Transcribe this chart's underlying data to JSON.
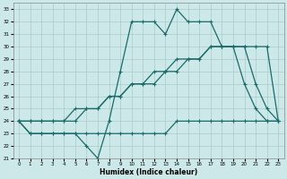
{
  "title": "",
  "xlabel": "Humidex (Indice chaleur)",
  "bg_color": "#cce8e8",
  "line_color": "#1a6b6b",
  "grid_color": "#aacaca",
  "xlim": [
    -0.5,
    23.5
  ],
  "ylim": [
    21,
    33.5
  ],
  "xticks": [
    0,
    1,
    2,
    3,
    4,
    5,
    6,
    7,
    8,
    9,
    10,
    11,
    12,
    13,
    14,
    15,
    16,
    17,
    18,
    19,
    20,
    21,
    22,
    23
  ],
  "yticks": [
    21,
    22,
    23,
    24,
    25,
    26,
    27,
    28,
    29,
    30,
    31,
    32,
    33
  ],
  "series1_x": [
    0,
    1,
    2,
    3,
    4,
    5,
    6,
    7,
    8,
    9,
    10,
    11,
    12,
    13,
    14,
    15,
    16,
    17,
    18,
    19,
    20,
    21,
    22,
    23
  ],
  "series1_y": [
    24,
    23,
    23,
    23,
    23,
    23,
    22,
    21,
    24,
    28,
    32,
    32,
    32,
    31,
    33,
    32,
    32,
    32,
    30,
    30,
    27,
    25,
    24,
    24
  ],
  "series2_x": [
    0,
    1,
    2,
    3,
    4,
    5,
    6,
    7,
    8,
    9,
    10,
    11,
    12,
    13,
    14,
    15,
    16,
    17,
    18,
    19,
    20,
    21,
    22,
    23
  ],
  "series2_y": [
    24,
    23,
    23,
    23,
    23,
    23,
    23,
    23,
    23,
    23,
    23,
    23,
    23,
    23,
    24,
    24,
    24,
    24,
    24,
    24,
    24,
    24,
    24,
    24
  ],
  "series3_x": [
    0,
    1,
    2,
    3,
    4,
    5,
    6,
    7,
    8,
    9,
    10,
    11,
    12,
    13,
    14,
    15,
    16,
    17,
    18,
    19,
    20,
    21,
    22,
    23
  ],
  "series3_y": [
    24,
    24,
    24,
    24,
    24,
    25,
    25,
    25,
    26,
    26,
    27,
    27,
    27,
    28,
    28,
    29,
    29,
    30,
    30,
    30,
    30,
    30,
    30,
    24
  ],
  "series4_x": [
    0,
    1,
    2,
    3,
    4,
    5,
    6,
    7,
    8,
    9,
    10,
    11,
    12,
    13,
    14,
    15,
    16,
    17,
    18,
    19,
    20,
    21,
    22,
    23
  ],
  "series4_y": [
    24,
    24,
    24,
    24,
    24,
    24,
    25,
    25,
    26,
    26,
    27,
    27,
    28,
    28,
    29,
    29,
    29,
    30,
    30,
    30,
    30,
    27,
    25,
    24
  ]
}
